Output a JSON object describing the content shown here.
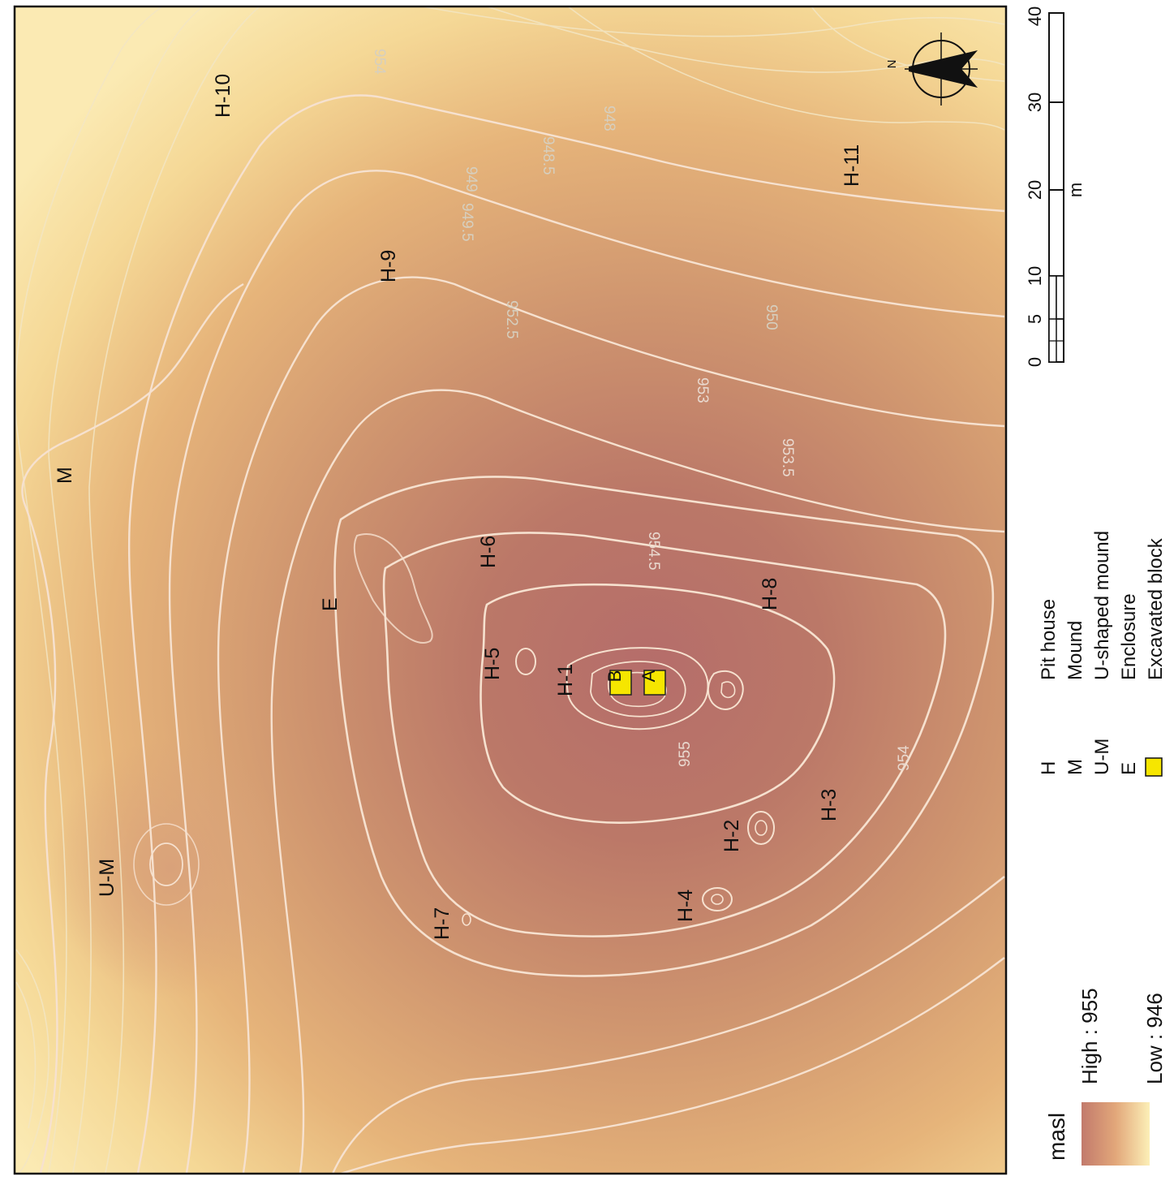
{
  "legend": {
    "title": "masl",
    "high_label": "High : 955",
    "low_label": "Low : 946",
    "ramp_colors": {
      "high": "#c27a6c",
      "mid": "#e2a77a",
      "low": "#fcefb7"
    },
    "features": [
      {
        "code": "H",
        "label": "Pit house"
      },
      {
        "code": "M",
        "label": "Mound"
      },
      {
        "code": "U-M",
        "label": "U-shaped mound"
      },
      {
        "code": "E",
        "label": "Enclosure"
      },
      {
        "code": "",
        "label": "Excavated block",
        "color": "#f6e600"
      }
    ]
  },
  "scale_bar": {
    "unit": "m",
    "ticks": [
      "0",
      "5",
      "10",
      "20",
      "30",
      "40"
    ]
  },
  "north_arrow": {
    "label": "N",
    "icon": "north-arrow-icon"
  },
  "map": {
    "site_labels": [
      "H-1",
      "H-2",
      "H-3",
      "H-4",
      "H-5",
      "H-6",
      "H-7",
      "H-8",
      "H-9",
      "H-10",
      "H-11",
      "M",
      "U-M",
      "E"
    ],
    "excavated_blocks": [
      "A",
      "B"
    ],
    "contour_labels": [
      "955",
      "954.5",
      "954",
      "953.5",
      "953",
      "952.5",
      "950",
      "949.5",
      "949",
      "948.5",
      "948",
      "954",
      "955"
    ]
  }
}
